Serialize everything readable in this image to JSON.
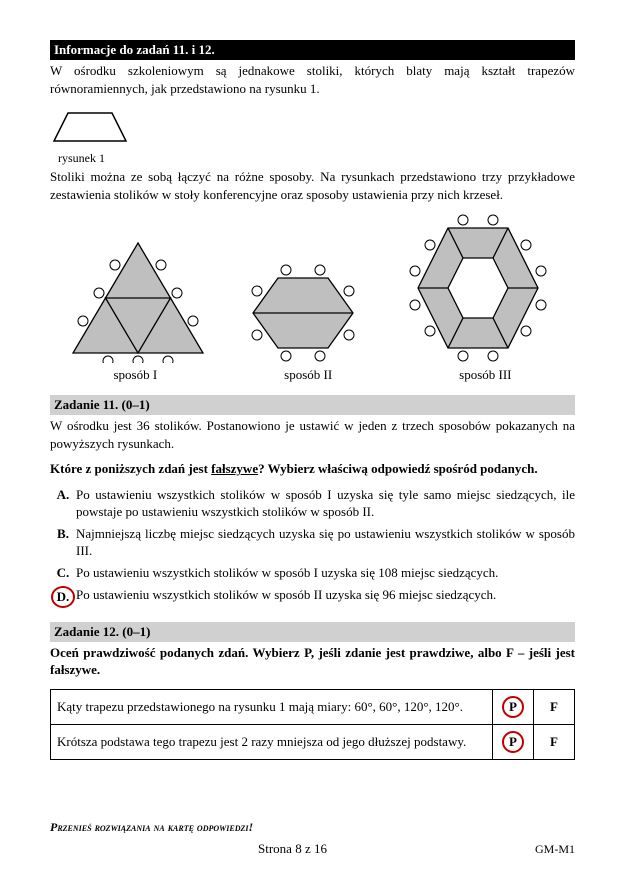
{
  "header_info": "Informacje do zadań 11. i 12.",
  "intro_para": "W ośrodku szkoleniowym są jednakowe stoliki, których blaty mają kształt trapezów równoramiennych, jak przedstawiono na rysunku 1.",
  "trapezoid_label": "rysunek 1",
  "para2": "Stoliki można ze sobą łączyć na różne sposoby. Na rysunkach przedstawiono trzy przykładowe zestawienia stolików w stoły konferencyjne oraz sposoby ustawienia przy nich krzeseł.",
  "method_labels": [
    "sposób I",
    "sposób II",
    "sposób III"
  ],
  "task11_header": "Zadanie 11. (0–1)",
  "task11_para": "W ośrodku jest 36 stolików. Postanowiono je ustawić w jeden z trzech sposobów pokazanych na powyższych rysunkach.",
  "task11_question_pre": "Które z poniższych zdań jest ",
  "task11_question_false": "fałszywe",
  "task11_question_post": "? Wybierz właściwą odpowiedź spośród podanych.",
  "options": [
    {
      "letter": "A.",
      "text": "Po ustawieniu wszystkich stolików w sposób I uzyska się tyle samo miejsc siedzących, ile powstaje po ustawieniu wszystkich stolików w sposób II.",
      "circled": false
    },
    {
      "letter": "B.",
      "text": "Najmniejszą liczbę miejsc siedzących uzyska się po ustawieniu wszystkich stolików w sposób III.",
      "circled": false
    },
    {
      "letter": "C.",
      "text": "Po ustawieniu wszystkich stolików w sposób I uzyska się 108 miejsc siedzących.",
      "circled": false
    },
    {
      "letter": "D.",
      "text": "Po ustawieniu wszystkich stolików w sposób II uzyska się 96 miejsc siedzących.",
      "circled": true
    }
  ],
  "task12_header": "Zadanie 12. (0–1)",
  "task12_instr": "Oceń prawdziwość podanych zdań. Wybierz P, jeśli zdanie jest prawdziwe, albo F – jeśli jest fałszywe.",
  "pf_rows": [
    {
      "text": "Kąty trapezu przedstawionego na rysunku 1 mają miary: 60°, 60°, 120°, 120°.",
      "answer": "P"
    },
    {
      "text": "Krótsza podstawa tego trapezu jest 2 razy mniejsza od jego dłuższej podstawy.",
      "answer": "P"
    }
  ],
  "pf_P": "P",
  "pf_F": "F",
  "footer_instr": "Przenieś rozwiązania na kartę odpowiedzi!",
  "page_num": "Strona 8 z 16",
  "exam_code": "GM-M1",
  "colors": {
    "shape_fill": "#bfbfbf",
    "shape_stroke": "#000000",
    "chair_fill": "#ffffff",
    "chair_stroke": "#000000",
    "circle_red": "#c00000"
  }
}
